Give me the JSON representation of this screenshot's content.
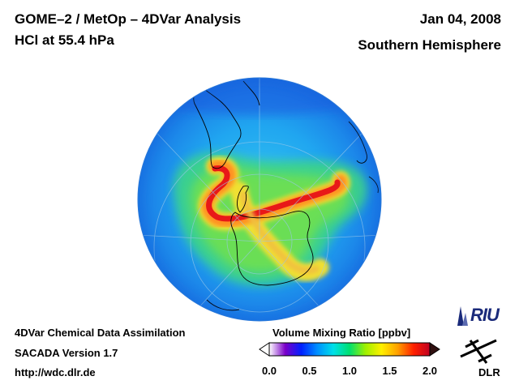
{
  "header": {
    "title_line1": "GOME–2 / MetOp – 4DVar Analysis",
    "title_line2": "HCl at 55.4 hPa",
    "date": "Jan 04, 2008",
    "region": "Southern Hemisphere"
  },
  "footer": {
    "line1": "4DVar Chemical Data Assimilation",
    "line2": "SACADA Version 1.7",
    "line3": "http://wdc.dlr.de"
  },
  "colorbar": {
    "title": "Volume Mixing Ratio [ppbv]",
    "min": 0.0,
    "max": 2.0,
    "ticks": [
      "0.0",
      "0.5",
      "1.0",
      "1.5",
      "2.0"
    ],
    "colors": [
      "#ffffff",
      "#7a00c8",
      "#0020ff",
      "#0090ff",
      "#00e0e8",
      "#00e070",
      "#a0f000",
      "#fff000",
      "#ffa000",
      "#ff2000",
      "#c00020"
    ]
  },
  "logos": {
    "riu": "RIU",
    "dlr": "DLR"
  },
  "colors": {
    "ocean_background": "#1f8ef0",
    "band_high": "#e82020",
    "band_mid": "#f0e000",
    "surround": "#60e060"
  }
}
